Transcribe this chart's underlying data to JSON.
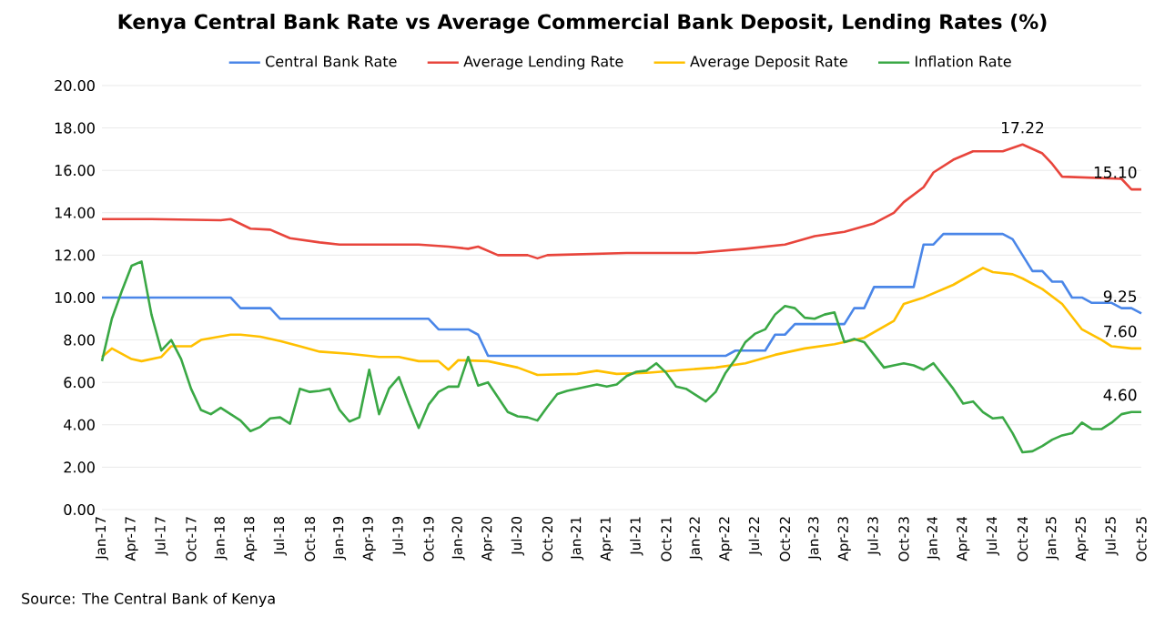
{
  "chart_data": {
    "type": "line",
    "title": "Kenya Central Bank Rate vs Average Commercial Bank Deposit, Lending Rates (%)",
    "grid": "y",
    "legend": "top",
    "line_style": "solid",
    "xlim": [
      "2017-01",
      "2025-10"
    ],
    "ylim": [
      0,
      20
    ],
    "yticks": [
      {
        "value": 0,
        "label": "0.00"
      },
      {
        "value": 2,
        "label": "2.00"
      },
      {
        "value": 4,
        "label": "4.00"
      },
      {
        "value": 6,
        "label": "6.00"
      },
      {
        "value": 8,
        "label": "8.00"
      },
      {
        "value": 10,
        "label": "10.00"
      },
      {
        "value": 12,
        "label": "12.00"
      },
      {
        "value": 14,
        "label": "14.00"
      },
      {
        "value": 16,
        "label": "16.00"
      },
      {
        "value": 18,
        "label": "18.00"
      },
      {
        "value": 20,
        "label": "20.00"
      }
    ],
    "xticks": [
      {
        "value": "2017-01",
        "label": "Jan-17"
      },
      {
        "value": "2017-04",
        "label": "Apr-17"
      },
      {
        "value": "2017-07",
        "label": "Jul-17"
      },
      {
        "value": "2017-10",
        "label": "Oct-17"
      },
      {
        "value": "2018-01",
        "label": "Jan-18"
      },
      {
        "value": "2018-04",
        "label": "Apr-18"
      },
      {
        "value": "2018-07",
        "label": "Jul-18"
      },
      {
        "value": "2018-10",
        "label": "Oct-18"
      },
      {
        "value": "2019-01",
        "label": "Jan-19"
      },
      {
        "value": "2019-04",
        "label": "Apr-19"
      },
      {
        "value": "2019-07",
        "label": "Jul-19"
      },
      {
        "value": "2019-10",
        "label": "Oct-19"
      },
      {
        "value": "2020-01",
        "label": "Jan-20"
      },
      {
        "value": "2020-04",
        "label": "Apr-20"
      },
      {
        "value": "2020-07",
        "label": "Jul-20"
      },
      {
        "value": "2020-10",
        "label": "Oct-20"
      },
      {
        "value": "2021-01",
        "label": "Jan-21"
      },
      {
        "value": "2021-04",
        "label": "Apr-21"
      },
      {
        "value": "2021-07",
        "label": "Jul-21"
      },
      {
        "value": "2021-10",
        "label": "Oct-21"
      },
      {
        "value": "2022-01",
        "label": "Jan-22"
      },
      {
        "value": "2022-04",
        "label": "Apr-22"
      },
      {
        "value": "2022-07",
        "label": "Jul-22"
      },
      {
        "value": "2022-10",
        "label": "Oct-22"
      },
      {
        "value": "2023-01",
        "label": "Jan-23"
      },
      {
        "value": "2023-04",
        "label": "Apr-23"
      },
      {
        "value": "2023-07",
        "label": "Jul-23"
      },
      {
        "value": "2023-10",
        "label": "Oct-23"
      },
      {
        "value": "2024-01",
        "label": "Jan-24"
      },
      {
        "value": "2024-04",
        "label": "Apr-24"
      },
      {
        "value": "2024-07",
        "label": "Jul-24"
      },
      {
        "value": "2024-10",
        "label": "Oct-24"
      },
      {
        "value": "2025-01",
        "label": "Jan-25"
      },
      {
        "value": "2025-04",
        "label": "Apr-25"
      },
      {
        "value": "2025-07",
        "label": "Jul-25"
      },
      {
        "value": "2025-10",
        "label": "Oct-25"
      }
    ],
    "series": [
      {
        "name": "Central Bank Rate",
        "color": "#4a86e8",
        "x": [
          "2017-01",
          "2018-02",
          "2018-03",
          "2018-06",
          "2018-07",
          "2019-10",
          "2019-11",
          "2020-02",
          "2020-03",
          "2020-04",
          "2022-04",
          "2022-05",
          "2022-08",
          "2022-09",
          "2022-10",
          "2022-11",
          "2023-04",
          "2023-05",
          "2023-06",
          "2023-07",
          "2023-11",
          "2023-12",
          "2024-01",
          "2024-02",
          "2024-08",
          "2024-09",
          "2024-10",
          "2024-11",
          "2024-12",
          "2025-01",
          "2025-02",
          "2025-03",
          "2025-04",
          "2025-05",
          "2025-07",
          "2025-08",
          "2025-09",
          "2025-10"
        ],
        "values": [
          10,
          10,
          9.5,
          9.5,
          9.0,
          9.0,
          8.5,
          8.5,
          8.25,
          7.25,
          7.25,
          7.5,
          7.5,
          8.25,
          8.25,
          8.75,
          8.75,
          9.5,
          9.5,
          10.5,
          10.5,
          12.5,
          12.5,
          13.0,
          13.0,
          12.75,
          12.0,
          11.25,
          11.25,
          10.75,
          10.75,
          10.0,
          10.0,
          9.75,
          9.75,
          9.5,
          9.5,
          9.25
        ]
      },
      {
        "name": "Average Lending Rate",
        "color": "#e8453c",
        "x": [
          "2017-01",
          "2017-06",
          "2018-01",
          "2018-02",
          "2018-04",
          "2018-06",
          "2018-08",
          "2018-11",
          "2019-01",
          "2019-09",
          "2019-12",
          "2020-02",
          "2020-03",
          "2020-05",
          "2020-08",
          "2020-09",
          "2020-10",
          "2021-06",
          "2022-01",
          "2022-06",
          "2022-10",
          "2023-01",
          "2023-04",
          "2023-07",
          "2023-09",
          "2023-10",
          "2023-12",
          "2024-01",
          "2024-03",
          "2024-05",
          "2024-08",
          "2024-10",
          "2024-12",
          "2025-01",
          "2025-02",
          "2025-08",
          "2025-09",
          "2025-10"
        ],
        "values": [
          13.7,
          13.7,
          13.65,
          13.7,
          13.25,
          13.2,
          12.8,
          12.6,
          12.5,
          12.5,
          12.4,
          12.3,
          12.4,
          12.0,
          12.0,
          11.85,
          12.0,
          12.1,
          12.1,
          12.3,
          12.5,
          12.9,
          13.1,
          13.5,
          14.0,
          14.5,
          15.2,
          15.9,
          16.5,
          16.9,
          16.9,
          17.22,
          16.8,
          16.3,
          15.7,
          15.6,
          15.1,
          15.1
        ]
      },
      {
        "name": "Average Deposit Rate",
        "color": "#ffc000",
        "x": [
          "2017-01",
          "2017-02",
          "2017-04",
          "2017-05",
          "2017-07",
          "2017-08",
          "2017-10",
          "2017-11",
          "2018-02",
          "2018-03",
          "2018-05",
          "2018-07",
          "2018-09",
          "2018-11",
          "2019-02",
          "2019-05",
          "2019-07",
          "2019-09",
          "2019-11",
          "2019-12",
          "2020-01",
          "2020-04",
          "2020-07",
          "2020-09",
          "2021-01",
          "2021-03",
          "2021-05",
          "2021-08",
          "2021-12",
          "2022-03",
          "2022-06",
          "2022-09",
          "2022-12",
          "2023-03",
          "2023-06",
          "2023-09",
          "2023-10",
          "2023-12",
          "2024-03",
          "2024-06",
          "2024-07",
          "2024-09",
          "2024-10",
          "2024-12",
          "2025-02",
          "2025-04",
          "2025-06",
          "2025-07",
          "2025-09",
          "2025-10"
        ],
        "values": [
          7.2,
          7.6,
          7.1,
          7.0,
          7.2,
          7.7,
          7.7,
          8.0,
          8.25,
          8.25,
          8.15,
          7.95,
          7.7,
          7.45,
          7.35,
          7.2,
          7.2,
          7.0,
          7.0,
          6.6,
          7.05,
          7.0,
          6.7,
          6.35,
          6.4,
          6.55,
          6.4,
          6.45,
          6.6,
          6.7,
          6.9,
          7.3,
          7.6,
          7.8,
          8.1,
          8.9,
          9.7,
          10.0,
          10.6,
          11.4,
          11.2,
          11.1,
          10.9,
          10.4,
          9.7,
          8.5,
          8.0,
          7.7,
          7.6,
          7.6
        ]
      },
      {
        "name": "Inflation Rate",
        "color": "#3aa845",
        "x": [
          "2017-01",
          "2017-02",
          "2017-03",
          "2017-04",
          "2017-05",
          "2017-06",
          "2017-07",
          "2017-08",
          "2017-09",
          "2017-10",
          "2017-11",
          "2017-12",
          "2018-01",
          "2018-02",
          "2018-03",
          "2018-04",
          "2018-05",
          "2018-06",
          "2018-07",
          "2018-08",
          "2018-09",
          "2018-10",
          "2018-11",
          "2018-12",
          "2019-01",
          "2019-02",
          "2019-03",
          "2019-04",
          "2019-05",
          "2019-06",
          "2019-07",
          "2019-08",
          "2019-09",
          "2019-10",
          "2019-11",
          "2019-12",
          "2020-01",
          "2020-02",
          "2020-03",
          "2020-04",
          "2020-05",
          "2020-06",
          "2020-07",
          "2020-08",
          "2020-09",
          "2020-10",
          "2020-11",
          "2020-12",
          "2021-01",
          "2021-02",
          "2021-03",
          "2021-04",
          "2021-05",
          "2021-06",
          "2021-07",
          "2021-08",
          "2021-09",
          "2021-10",
          "2021-11",
          "2021-12",
          "2022-01",
          "2022-02",
          "2022-03",
          "2022-04",
          "2022-05",
          "2022-06",
          "2022-07",
          "2022-08",
          "2022-09",
          "2022-10",
          "2022-11",
          "2022-12",
          "2023-01",
          "2023-02",
          "2023-03",
          "2023-04",
          "2023-05",
          "2023-06",
          "2023-07",
          "2023-08",
          "2023-09",
          "2023-10",
          "2023-11",
          "2023-12",
          "2024-01",
          "2024-02",
          "2024-03",
          "2024-04",
          "2024-05",
          "2024-06",
          "2024-07",
          "2024-08",
          "2024-09",
          "2024-10",
          "2024-11",
          "2024-12",
          "2025-01",
          "2025-02",
          "2025-03",
          "2025-04",
          "2025-05",
          "2025-06",
          "2025-07",
          "2025-08",
          "2025-09",
          "2025-10"
        ],
        "values": [
          7.0,
          9.0,
          10.3,
          11.5,
          11.7,
          9.2,
          7.5,
          8.0,
          7.1,
          5.7,
          4.7,
          4.5,
          4.8,
          4.5,
          4.2,
          3.7,
          3.9,
          4.3,
          4.35,
          4.05,
          5.7,
          5.55,
          5.6,
          5.7,
          4.7,
          4.15,
          4.35,
          6.6,
          4.5,
          5.7,
          6.25,
          5.0,
          3.85,
          4.95,
          5.55,
          5.8,
          5.8,
          7.2,
          5.85,
          6.0,
          5.3,
          4.6,
          4.4,
          4.35,
          4.2,
          4.85,
          5.45,
          5.6,
          5.7,
          5.8,
          5.9,
          5.8,
          5.9,
          6.3,
          6.5,
          6.55,
          6.9,
          6.45,
          5.8,
          5.7,
          5.4,
          5.1,
          5.55,
          6.45,
          7.1,
          7.9,
          8.3,
          8.5,
          9.2,
          9.6,
          9.5,
          9.05,
          9.0,
          9.2,
          9.3,
          7.9,
          8.05,
          7.9,
          7.3,
          6.7,
          6.8,
          6.9,
          6.8,
          6.6,
          6.9,
          6.3,
          5.7,
          5.0,
          5.1,
          4.6,
          4.3,
          4.35,
          3.6,
          2.7,
          2.75,
          3.0,
          3.3,
          3.5,
          3.6,
          4.1,
          3.8,
          3.8,
          4.1,
          4.5,
          4.6,
          4.6
        ]
      }
    ],
    "annotations": [
      {
        "text": "17.22",
        "x": "2024-10",
        "y": 17.22
      },
      {
        "text": "15.10",
        "x": "2025-10",
        "y": 15.1
      },
      {
        "text": "9.25",
        "x": "2025-10",
        "y": 9.25
      },
      {
        "text": "7.60",
        "x": "2025-10",
        "y": 7.6
      },
      {
        "text": "4.60",
        "x": "2025-10",
        "y": 4.6
      },
      "Source: The Central Bank of Kenya"
    ]
  }
}
